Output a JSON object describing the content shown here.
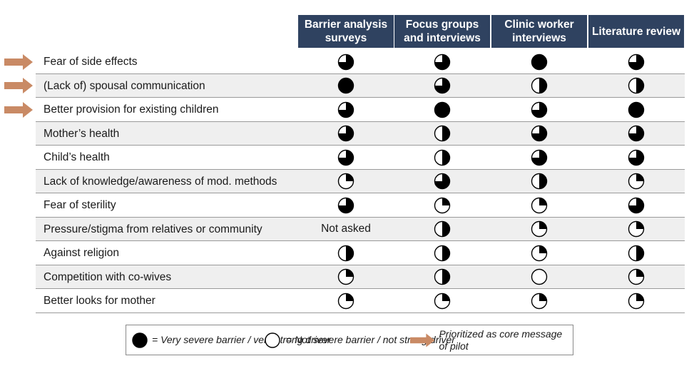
{
  "columns": [
    "Barrier analysis surveys",
    "Focus groups and interviews",
    "Clinic worker interviews",
    "Literature review"
  ],
  "rows": [
    {
      "label": "Fear of side effects",
      "prioritized": true,
      "values": [
        0.75,
        0.75,
        1,
        0.75
      ]
    },
    {
      "label": "(Lack of) spousal communication",
      "prioritized": true,
      "values": [
        1,
        0.75,
        0.5,
        0.5
      ]
    },
    {
      "label": "Better provision for existing children",
      "prioritized": true,
      "values": [
        0.75,
        1,
        0.75,
        1
      ]
    },
    {
      "label": "Mother’s health",
      "prioritized": false,
      "values": [
        0.75,
        0.5,
        0.75,
        0.75
      ]
    },
    {
      "label": "Child’s health",
      "prioritized": false,
      "values": [
        0.75,
        0.5,
        0.75,
        0.75
      ]
    },
    {
      "label": "Lack of knowledge/awareness of mod. methods",
      "prioritized": false,
      "values": [
        0.25,
        0.75,
        0.5,
        0.25
      ]
    },
    {
      "label": "Fear of sterility",
      "prioritized": false,
      "values": [
        0.75,
        0.25,
        0.25,
        0.75
      ]
    },
    {
      "label": "Pressure/stigma from relatives or community",
      "prioritized": false,
      "values": [
        "Not asked",
        0.5,
        0.25,
        0.25
      ]
    },
    {
      "label": "Against religion",
      "prioritized": false,
      "values": [
        0.5,
        0.5,
        0.25,
        0.5
      ]
    },
    {
      "label": "Competition with co-wives",
      "prioritized": false,
      "values": [
        0.25,
        0.5,
        0,
        0.25
      ]
    },
    {
      "label": "Better looks for mother",
      "prioritized": false,
      "values": [
        0.25,
        0.25,
        0.25,
        0.25
      ]
    }
  ],
  "legend": {
    "full": "= Very severe barrier / very strong driver",
    "empty": "= Not severe barrier / not strong driver",
    "arrow": "Prioritized as core message of pilot"
  },
  "colors": {
    "header": "#2f4260",
    "arrow": "#c98a65",
    "shade": "#efefef",
    "ball": "#000000"
  }
}
